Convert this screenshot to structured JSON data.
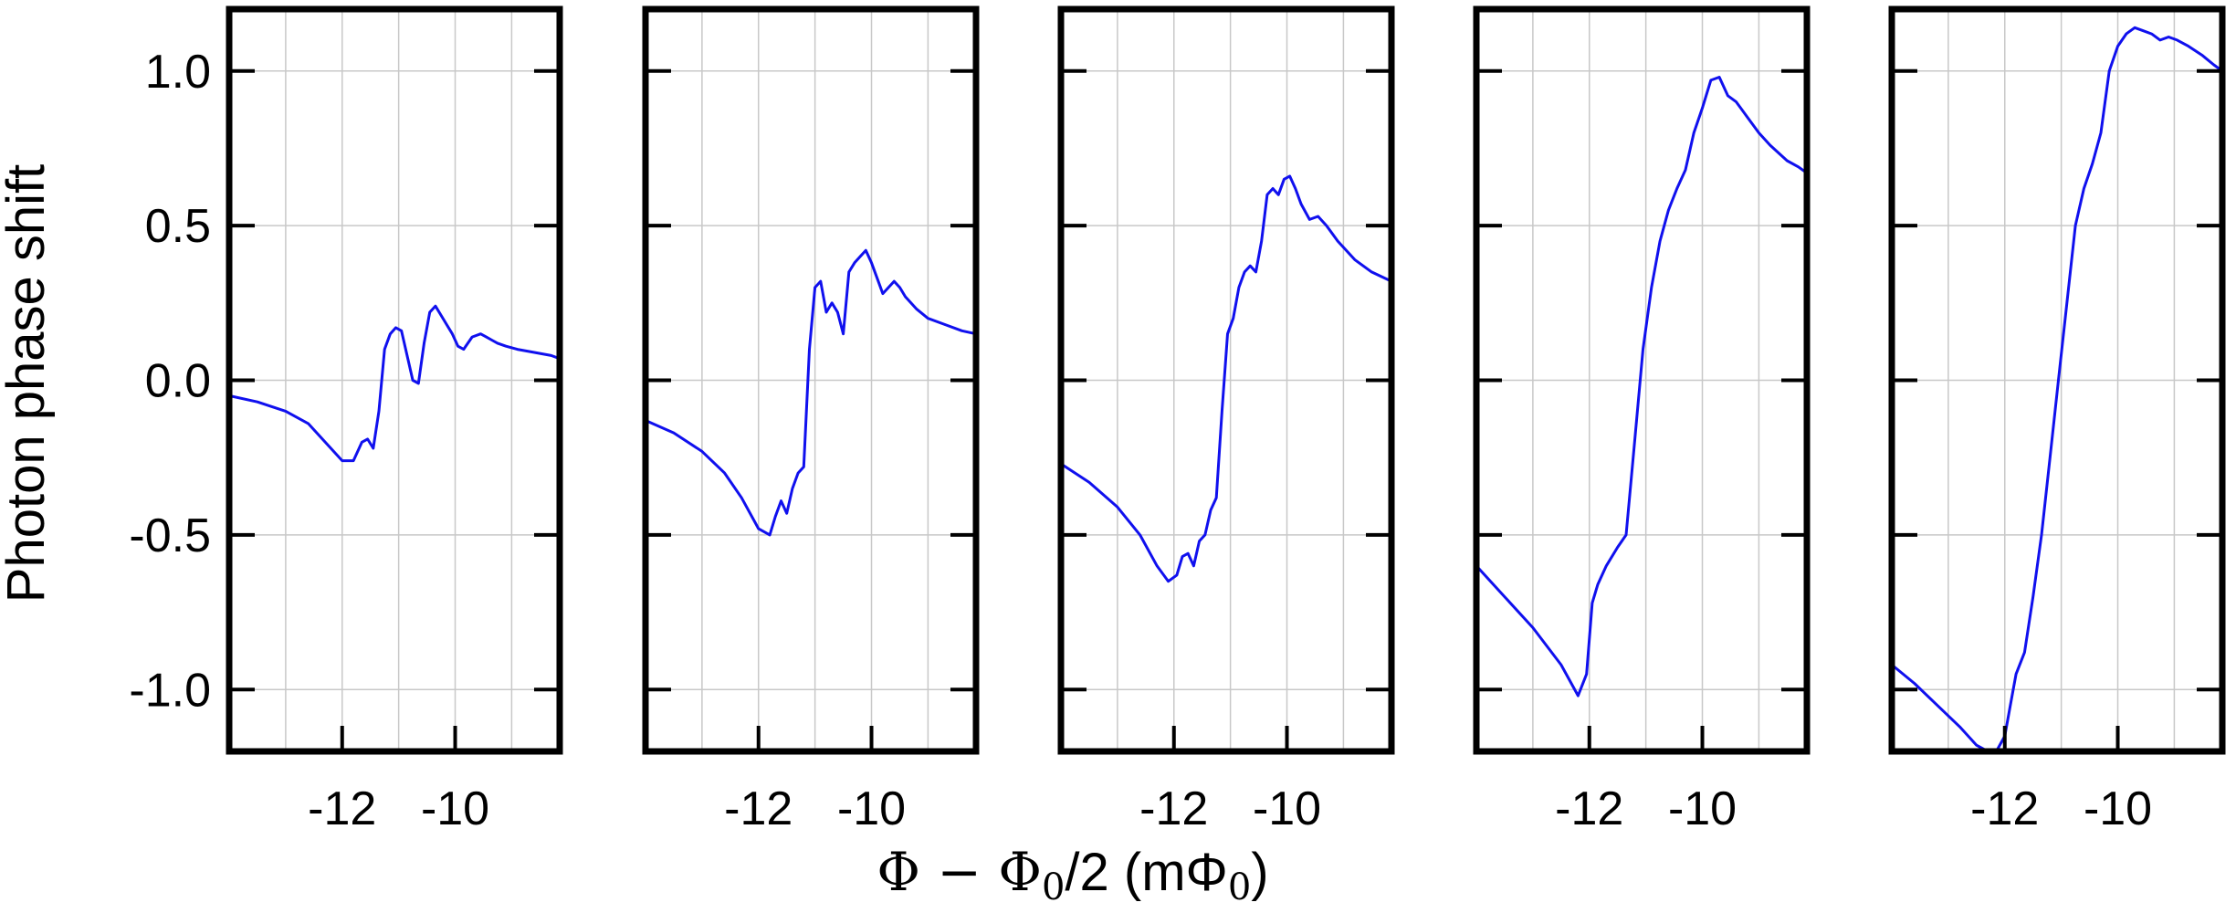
{
  "chart_data": {
    "type": "line",
    "ylabel": "Photon phase shift",
    "xlabel_parts": [
      "Φ − Φ",
      "0",
      "/2 (mΦ",
      "0",
      ")"
    ],
    "xlim": [
      -14.0,
      -8.15
    ],
    "ylim": [
      -1.2,
      1.2
    ],
    "x_ticks": [
      -12,
      -10
    ],
    "x_tick_labels": [
      "-12",
      "-10"
    ],
    "x_minor_grid": [
      -13,
      -11,
      -9
    ],
    "y_ticks": [
      -1.0,
      -0.5,
      0.0,
      0.5,
      1.0
    ],
    "y_tick_labels": [
      "-1.0",
      "-0.5",
      "0.0",
      "0.5",
      "1.0"
    ],
    "grid": true,
    "series_color": "#1010ee",
    "panels": [
      {
        "x": [
          -14.0,
          -13.5,
          -13.0,
          -12.6,
          -12.3,
          -12.0,
          -11.8,
          -11.65,
          -11.55,
          -11.45,
          -11.35,
          -11.25,
          -11.15,
          -11.05,
          -10.95,
          -10.85,
          -10.75,
          -10.65,
          -10.55,
          -10.45,
          -10.35,
          -10.25,
          -10.15,
          -10.05,
          -9.95,
          -9.85,
          -9.7,
          -9.55,
          -9.45,
          -9.35,
          -9.25,
          -9.1,
          -8.9,
          -8.6,
          -8.3,
          -8.15
        ],
        "y": [
          -0.05,
          -0.07,
          -0.1,
          -0.14,
          -0.2,
          -0.26,
          -0.26,
          -0.2,
          -0.19,
          -0.22,
          -0.1,
          0.1,
          0.15,
          0.17,
          0.16,
          0.08,
          0.0,
          -0.01,
          0.12,
          0.22,
          0.24,
          0.21,
          0.18,
          0.15,
          0.11,
          0.1,
          0.14,
          0.15,
          0.14,
          0.13,
          0.12,
          0.11,
          0.1,
          0.09,
          0.08,
          0.07
        ]
      },
      {
        "x": [
          -14.0,
          -13.5,
          -13.0,
          -12.6,
          -12.3,
          -12.0,
          -11.8,
          -11.7,
          -11.6,
          -11.5,
          -11.4,
          -11.3,
          -11.2,
          -11.1,
          -11.0,
          -10.9,
          -10.8,
          -10.7,
          -10.6,
          -10.5,
          -10.4,
          -10.3,
          -10.2,
          -10.1,
          -10.0,
          -9.9,
          -9.8,
          -9.7,
          -9.6,
          -9.5,
          -9.4,
          -9.2,
          -9.0,
          -8.7,
          -8.4,
          -8.15
        ],
        "y": [
          -0.13,
          -0.17,
          -0.23,
          -0.3,
          -0.38,
          -0.48,
          -0.5,
          -0.44,
          -0.39,
          -0.43,
          -0.35,
          -0.3,
          -0.28,
          0.1,
          0.3,
          0.32,
          0.22,
          0.25,
          0.22,
          0.15,
          0.35,
          0.38,
          0.4,
          0.42,
          0.38,
          0.33,
          0.28,
          0.3,
          0.32,
          0.3,
          0.27,
          0.23,
          0.2,
          0.18,
          0.16,
          0.15
        ]
      },
      {
        "x": [
          -14.0,
          -13.5,
          -13.0,
          -12.6,
          -12.3,
          -12.1,
          -11.95,
          -11.85,
          -11.75,
          -11.65,
          -11.55,
          -11.45,
          -11.35,
          -11.25,
          -11.15,
          -11.05,
          -10.95,
          -10.85,
          -10.75,
          -10.65,
          -10.55,
          -10.45,
          -10.35,
          -10.25,
          -10.15,
          -10.05,
          -9.95,
          -9.85,
          -9.75,
          -9.6,
          -9.45,
          -9.3,
          -9.1,
          -8.8,
          -8.5,
          -8.15
        ],
        "y": [
          -0.27,
          -0.33,
          -0.41,
          -0.5,
          -0.6,
          -0.65,
          -0.63,
          -0.57,
          -0.56,
          -0.6,
          -0.52,
          -0.5,
          -0.42,
          -0.38,
          -0.1,
          0.15,
          0.2,
          0.3,
          0.35,
          0.37,
          0.35,
          0.45,
          0.6,
          0.62,
          0.6,
          0.65,
          0.66,
          0.62,
          0.57,
          0.52,
          0.53,
          0.5,
          0.45,
          0.39,
          0.35,
          0.32
        ]
      },
      {
        "x": [
          -14.0,
          -13.5,
          -13.0,
          -12.5,
          -12.2,
          -12.05,
          -11.95,
          -11.85,
          -11.7,
          -11.5,
          -11.35,
          -11.2,
          -11.05,
          -10.9,
          -10.75,
          -10.6,
          -10.45,
          -10.3,
          -10.15,
          -10.0,
          -9.85,
          -9.7,
          -9.55,
          -9.4,
          -9.2,
          -9.0,
          -8.8,
          -8.5,
          -8.3,
          -8.15
        ],
        "y": [
          -0.6,
          -0.7,
          -0.8,
          -0.92,
          -1.02,
          -0.95,
          -0.72,
          -0.66,
          -0.6,
          -0.54,
          -0.5,
          -0.2,
          0.1,
          0.3,
          0.45,
          0.55,
          0.62,
          0.68,
          0.8,
          0.88,
          0.97,
          0.98,
          0.92,
          0.9,
          0.85,
          0.8,
          0.76,
          0.71,
          0.69,
          0.67
        ]
      },
      {
        "x": [
          -14.0,
          -13.6,
          -13.2,
          -12.8,
          -12.5,
          -12.3,
          -12.15,
          -12.0,
          -11.9,
          -11.8,
          -11.65,
          -11.5,
          -11.35,
          -11.2,
          -11.05,
          -10.9,
          -10.75,
          -10.6,
          -10.45,
          -10.3,
          -10.15,
          -10.0,
          -9.85,
          -9.7,
          -9.55,
          -9.4,
          -9.25,
          -9.1,
          -8.95,
          -8.75,
          -8.5,
          -8.3,
          -8.15
        ],
        "y": [
          -0.92,
          -0.98,
          -1.05,
          -1.12,
          -1.18,
          -1.2,
          -1.2,
          -1.15,
          -1.05,
          -0.95,
          -0.88,
          -0.7,
          -0.5,
          -0.25,
          0.0,
          0.25,
          0.5,
          0.62,
          0.7,
          0.8,
          1.0,
          1.08,
          1.12,
          1.14,
          1.13,
          1.12,
          1.1,
          1.11,
          1.1,
          1.08,
          1.05,
          1.02,
          1.0
        ]
      }
    ]
  }
}
